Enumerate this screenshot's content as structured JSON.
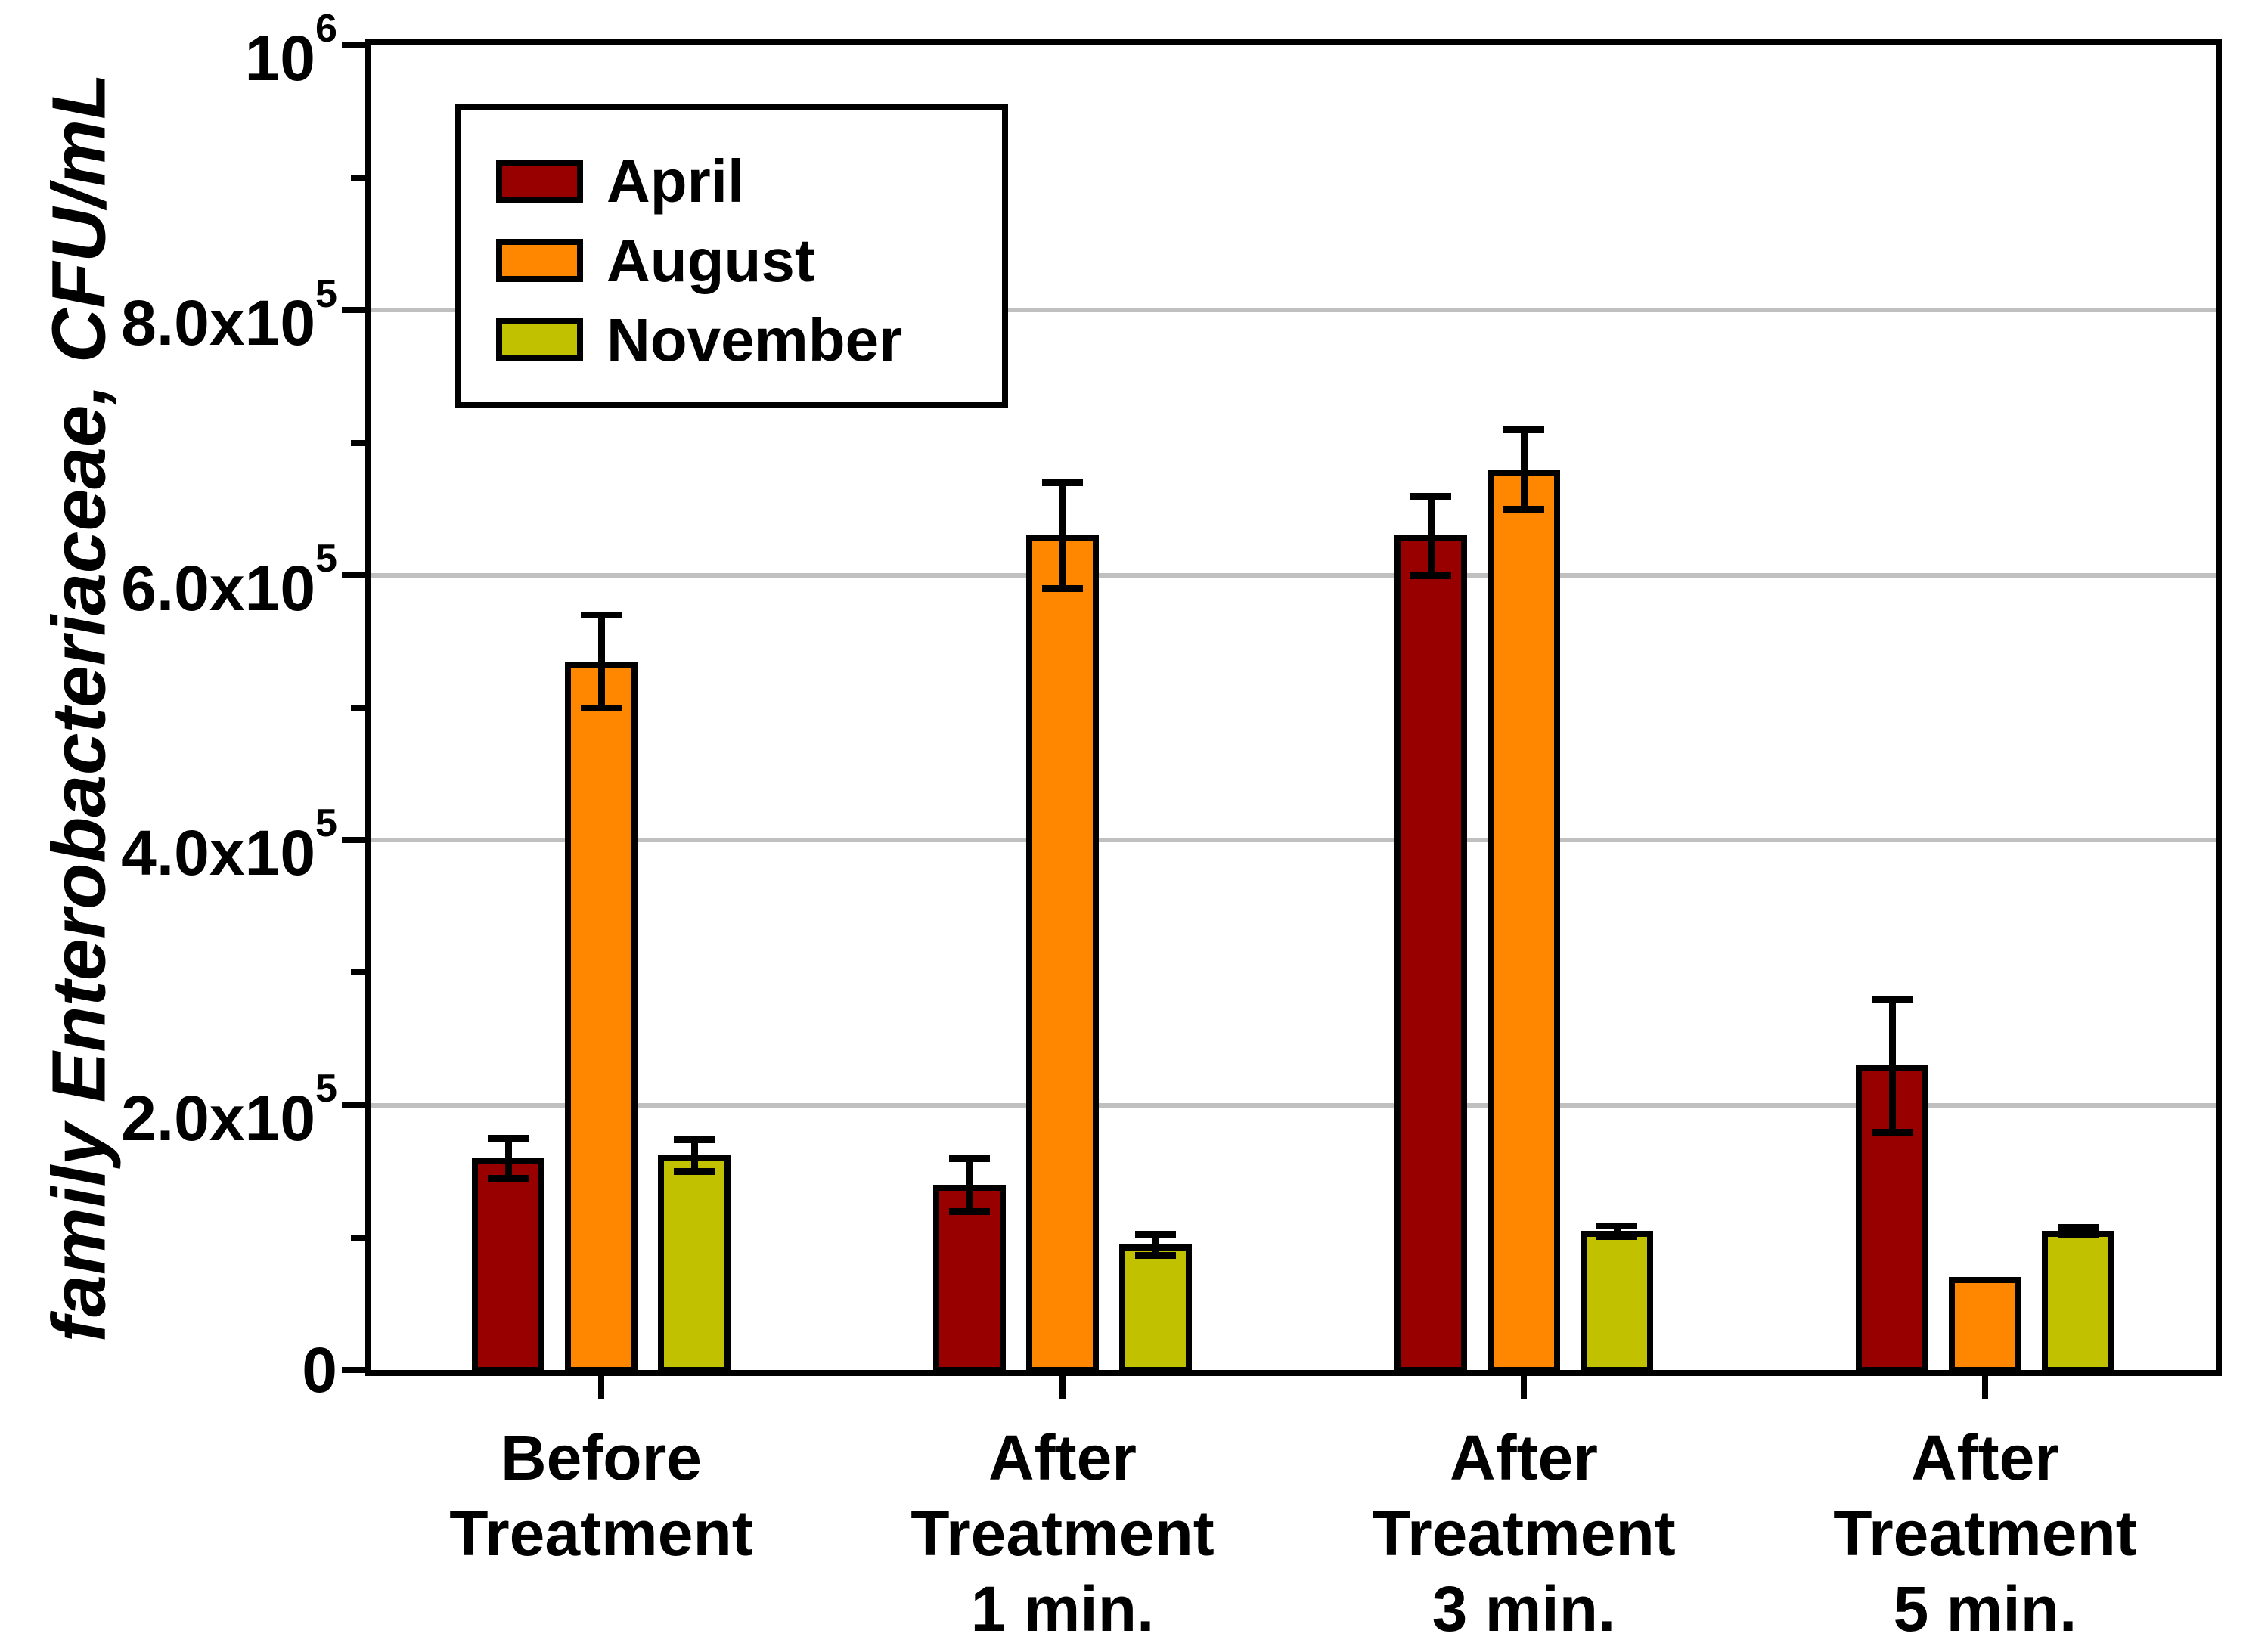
{
  "chart_data": {
    "type": "bar",
    "title": "",
    "ylabel": "family Enterobacteriaceae, CFU/mL",
    "xlabel": "",
    "ylim": [
      0,
      1000000
    ],
    "grid": true,
    "grid_color": "#C0C0C0",
    "legend_position": "upper-left",
    "y_major_ticks": [
      {
        "v": 0,
        "label": "0"
      },
      {
        "v": 200000,
        "label": "2.0x10^5"
      },
      {
        "v": 400000,
        "label": "4.0x10^5"
      },
      {
        "v": 600000,
        "label": "6.0x10^5"
      },
      {
        "v": 800000,
        "label": "8.0x10^5"
      },
      {
        "v": 1000000,
        "label": "10^6"
      }
    ],
    "y_minor_ticks": [
      100000,
      300000,
      500000,
      700000,
      900000
    ],
    "gridlines": [
      200000,
      400000,
      600000,
      800000
    ],
    "categories": [
      [
        "Before",
        "Treatment"
      ],
      [
        "After",
        "Treatment",
        "1 min."
      ],
      [
        "After",
        "Treatment",
        "3 min."
      ],
      [
        "After",
        "Treatment",
        "5 min."
      ]
    ],
    "series": [
      {
        "name": "April",
        "color": "#980000",
        "values": [
          160000,
          140000,
          630000,
          230000
        ],
        "errors": [
          15000,
          20000,
          30000,
          50000
        ]
      },
      {
        "name": "August",
        "color": "#FF8700",
        "values": [
          535000,
          630000,
          680000,
          70000
        ],
        "errors": [
          35000,
          40000,
          30000,
          0
        ]
      },
      {
        "name": "November",
        "color": "#C1C100",
        "values": [
          162000,
          95000,
          105000,
          105000
        ],
        "errors": [
          12000,
          8000,
          4000,
          3000
        ]
      }
    ]
  }
}
